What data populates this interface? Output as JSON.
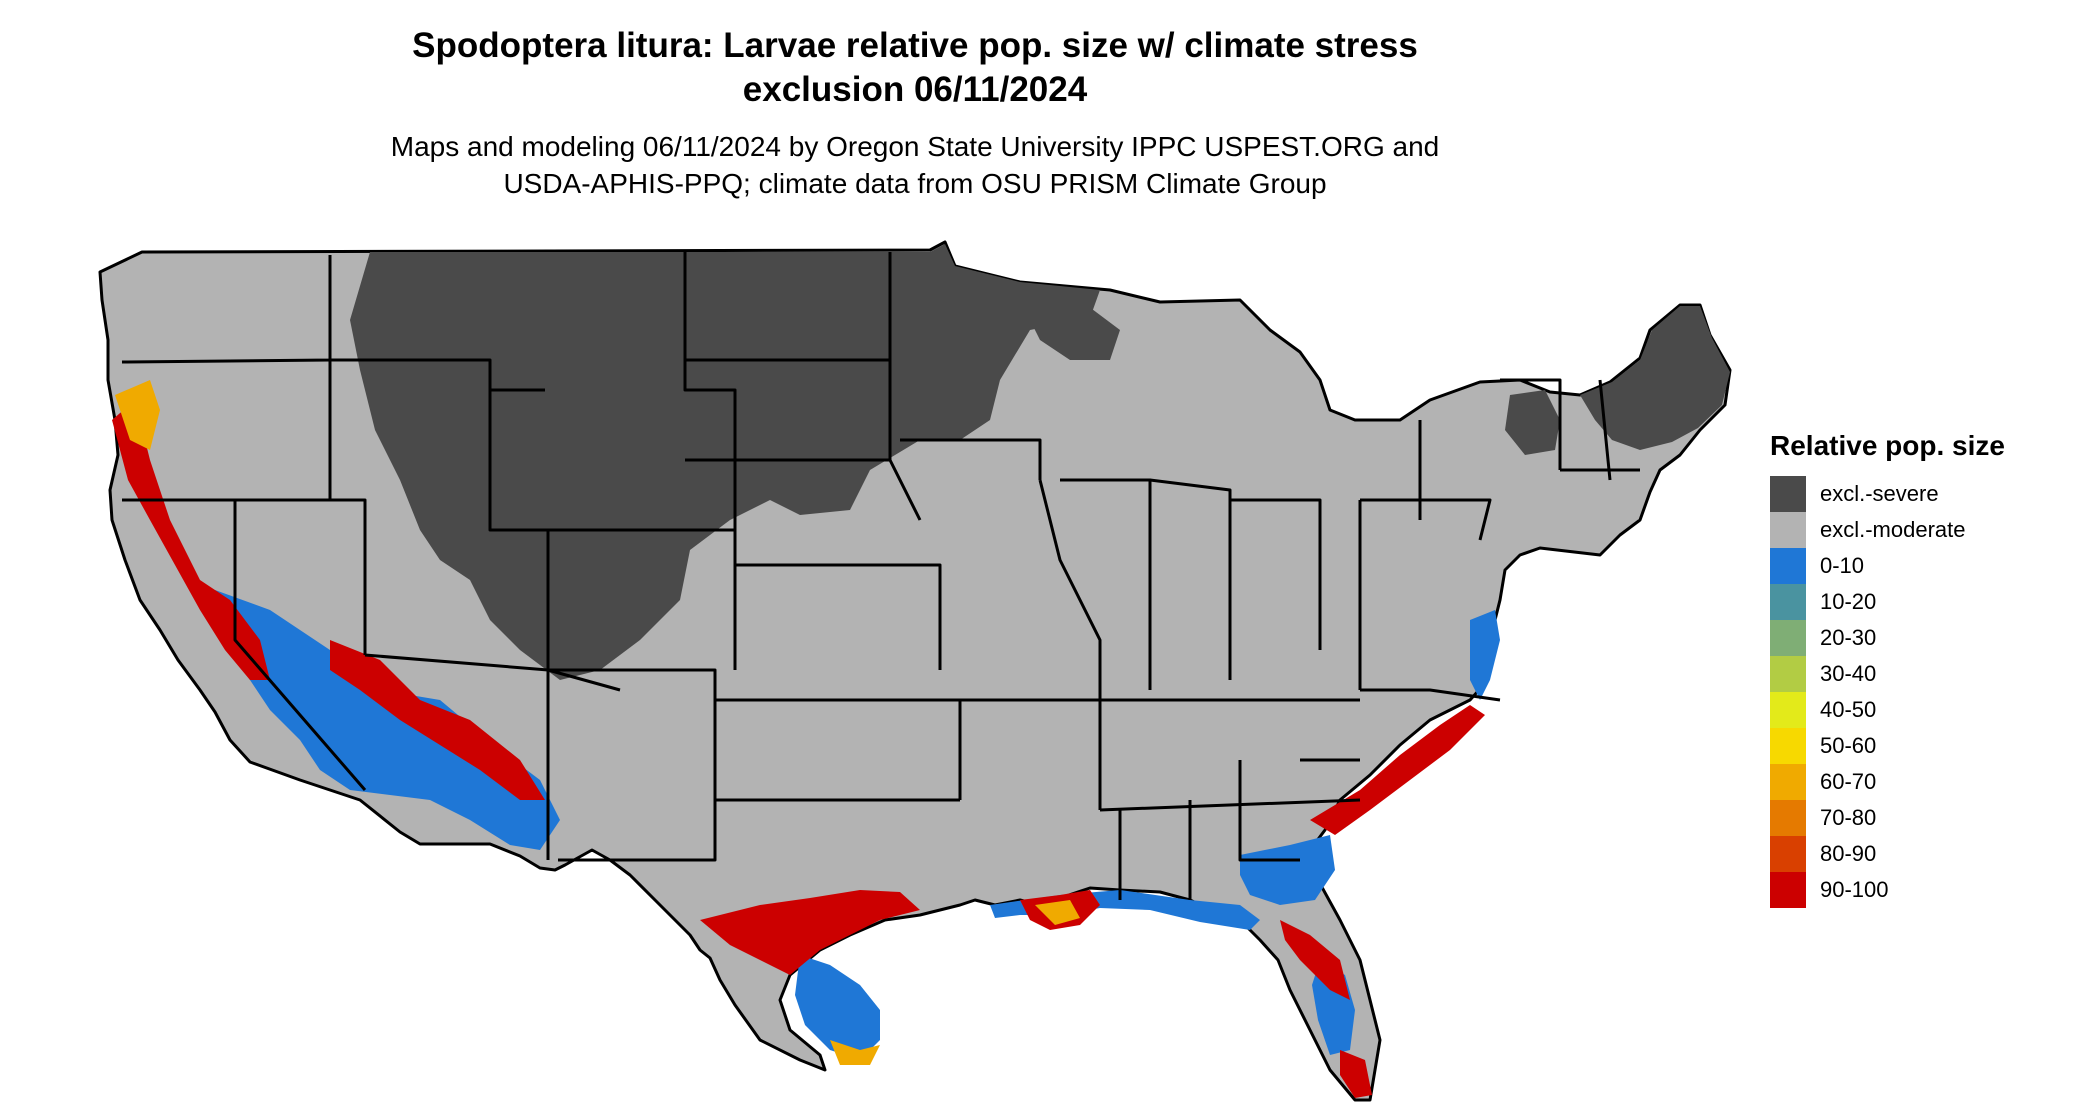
{
  "title": {
    "line1": "Spodoptera litura: Larvae relative pop. size w/ climate stress",
    "line2": "exclusion 06/11/2024"
  },
  "subtitle": {
    "line1": "Maps and modeling 06/11/2024 by Oregon State University IPPC USPEST.ORG and",
    "line2": "USDA-APHIS-PPQ; climate data from OSU PRISM Climate Group"
  },
  "legend": {
    "title": "Relative pop. size",
    "items": [
      {
        "label": "excl.-severe",
        "color": "#4a4a4a"
      },
      {
        "label": "excl.-moderate",
        "color": "#b3b3b3"
      },
      {
        "label": "0-10",
        "color": "#1f77d6"
      },
      {
        "label": "10-20",
        "color": "#4a93a0"
      },
      {
        "label": "20-30",
        "color": "#7fae75"
      },
      {
        "label": "30-40",
        "color": "#b2cc44"
      },
      {
        "label": "40-50",
        "color": "#e3ea1a"
      },
      {
        "label": "50-60",
        "color": "#f7d900"
      },
      {
        "label": "60-70",
        "color": "#f0aa00"
      },
      {
        "label": "70-80",
        "color": "#e57a00"
      },
      {
        "label": "80-90",
        "color": "#d94000"
      },
      {
        "label": "90-100",
        "color": "#cc0000"
      }
    ]
  }
}
